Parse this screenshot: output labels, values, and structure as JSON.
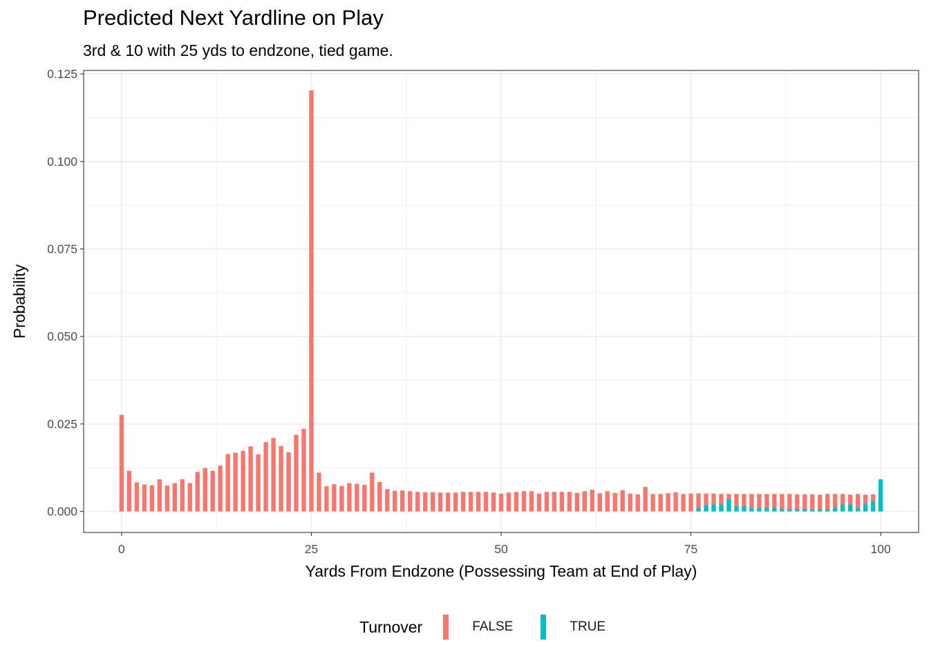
{
  "title": "Predicted Next Yardline on Play",
  "subtitle": "3rd & 10 with 25 yds to endzone, tied game.",
  "colors": {
    "false": "#F8766D",
    "true": "#00BFC4",
    "grid": "#ebebeb",
    "panel_border": "#333333"
  },
  "legend": {
    "title": "Turnover",
    "items": [
      {
        "label": "FALSE"
      },
      {
        "label": "TRUE"
      }
    ],
    "position": "bottom"
  },
  "chart_data": {
    "type": "bar",
    "stacked": true,
    "xlabel": "Yards From Endzone (Possessing Team at End of Play)",
    "ylabel": "Probability",
    "xlim": [
      -5,
      105
    ],
    "ylim": [
      -0.006,
      0.126
    ],
    "x_ticks": [
      0,
      25,
      50,
      75,
      100
    ],
    "y_ticks": [
      0.0,
      0.025,
      0.05,
      0.075,
      0.1,
      0.125
    ],
    "y_tick_labels": [
      "0.000",
      "0.025",
      "0.050",
      "0.075",
      "0.100",
      "0.125"
    ],
    "grid": true,
    "x": [
      0,
      1,
      2,
      3,
      4,
      5,
      6,
      7,
      8,
      9,
      10,
      11,
      12,
      13,
      14,
      15,
      16,
      17,
      18,
      19,
      20,
      21,
      22,
      23,
      24,
      25,
      26,
      27,
      28,
      29,
      30,
      31,
      32,
      33,
      34,
      35,
      36,
      37,
      38,
      39,
      40,
      41,
      42,
      43,
      44,
      45,
      46,
      47,
      48,
      49,
      50,
      51,
      52,
      53,
      54,
      55,
      56,
      57,
      58,
      59,
      60,
      61,
      62,
      63,
      64,
      65,
      66,
      67,
      68,
      69,
      70,
      71,
      72,
      73,
      74,
      75,
      76,
      77,
      78,
      79,
      80,
      81,
      82,
      83,
      84,
      85,
      86,
      87,
      88,
      89,
      90,
      91,
      92,
      93,
      94,
      95,
      96,
      97,
      98,
      99,
      100
    ],
    "series": [
      {
        "name": "FALSE",
        "values": [
          0.0276,
          0.0116,
          0.0083,
          0.0077,
          0.0075,
          0.0092,
          0.0074,
          0.0081,
          0.0092,
          0.0081,
          0.0113,
          0.0124,
          0.0116,
          0.0131,
          0.0164,
          0.0168,
          0.0173,
          0.0186,
          0.0163,
          0.0198,
          0.021,
          0.0187,
          0.0169,
          0.0219,
          0.0236,
          0.1203,
          0.0111,
          0.0072,
          0.0078,
          0.0073,
          0.0081,
          0.0079,
          0.0076,
          0.0111,
          0.0084,
          0.0064,
          0.0059,
          0.006,
          0.0058,
          0.0056,
          0.0055,
          0.0055,
          0.0054,
          0.0054,
          0.0054,
          0.0056,
          0.0056,
          0.0056,
          0.0056,
          0.0054,
          0.0051,
          0.0054,
          0.0056,
          0.0058,
          0.0058,
          0.0051,
          0.0056,
          0.0056,
          0.0056,
          0.0056,
          0.0053,
          0.0058,
          0.0062,
          0.0052,
          0.0058,
          0.0053,
          0.0061,
          0.0051,
          0.0049,
          0.007,
          0.005,
          0.005,
          0.0052,
          0.0055,
          0.005,
          0.0051,
          0.0042,
          0.0033,
          0.0031,
          0.003,
          0.0015,
          0.0035,
          0.0035,
          0.004,
          0.004,
          0.004,
          0.004,
          0.0043,
          0.0043,
          0.0042,
          0.0042,
          0.0043,
          0.0042,
          0.0045,
          0.004,
          0.003,
          0.0028,
          0.004,
          0.0026,
          0.0021,
          0.0
        ]
      },
      {
        "name": "TRUE",
        "values": [
          0,
          0,
          0,
          0,
          0,
          0,
          0,
          0,
          0,
          0,
          0,
          0,
          0,
          0,
          0,
          0,
          0,
          0,
          0,
          0,
          0,
          0,
          0,
          0,
          0,
          0,
          0,
          0,
          0,
          0,
          0,
          0,
          0,
          0,
          0,
          0,
          0,
          0,
          0,
          0,
          0,
          0,
          0,
          0,
          0,
          0,
          0,
          0,
          0,
          0,
          0,
          0,
          0,
          0,
          0,
          0,
          0,
          0,
          0,
          0,
          0,
          0,
          0,
          0,
          0,
          0,
          0,
          0,
          0,
          0,
          0,
          0,
          0,
          0,
          0,
          0,
          0.001,
          0.0018,
          0.002,
          0.002,
          0.0035,
          0.0015,
          0.0015,
          0.001,
          0.001,
          0.001,
          0.001,
          0.0007,
          0.0007,
          0.0007,
          0.0007,
          0.0006,
          0.0006,
          0.0005,
          0.001,
          0.002,
          0.002,
          0.001,
          0.0022,
          0.0028,
          0.0092
        ]
      }
    ]
  }
}
